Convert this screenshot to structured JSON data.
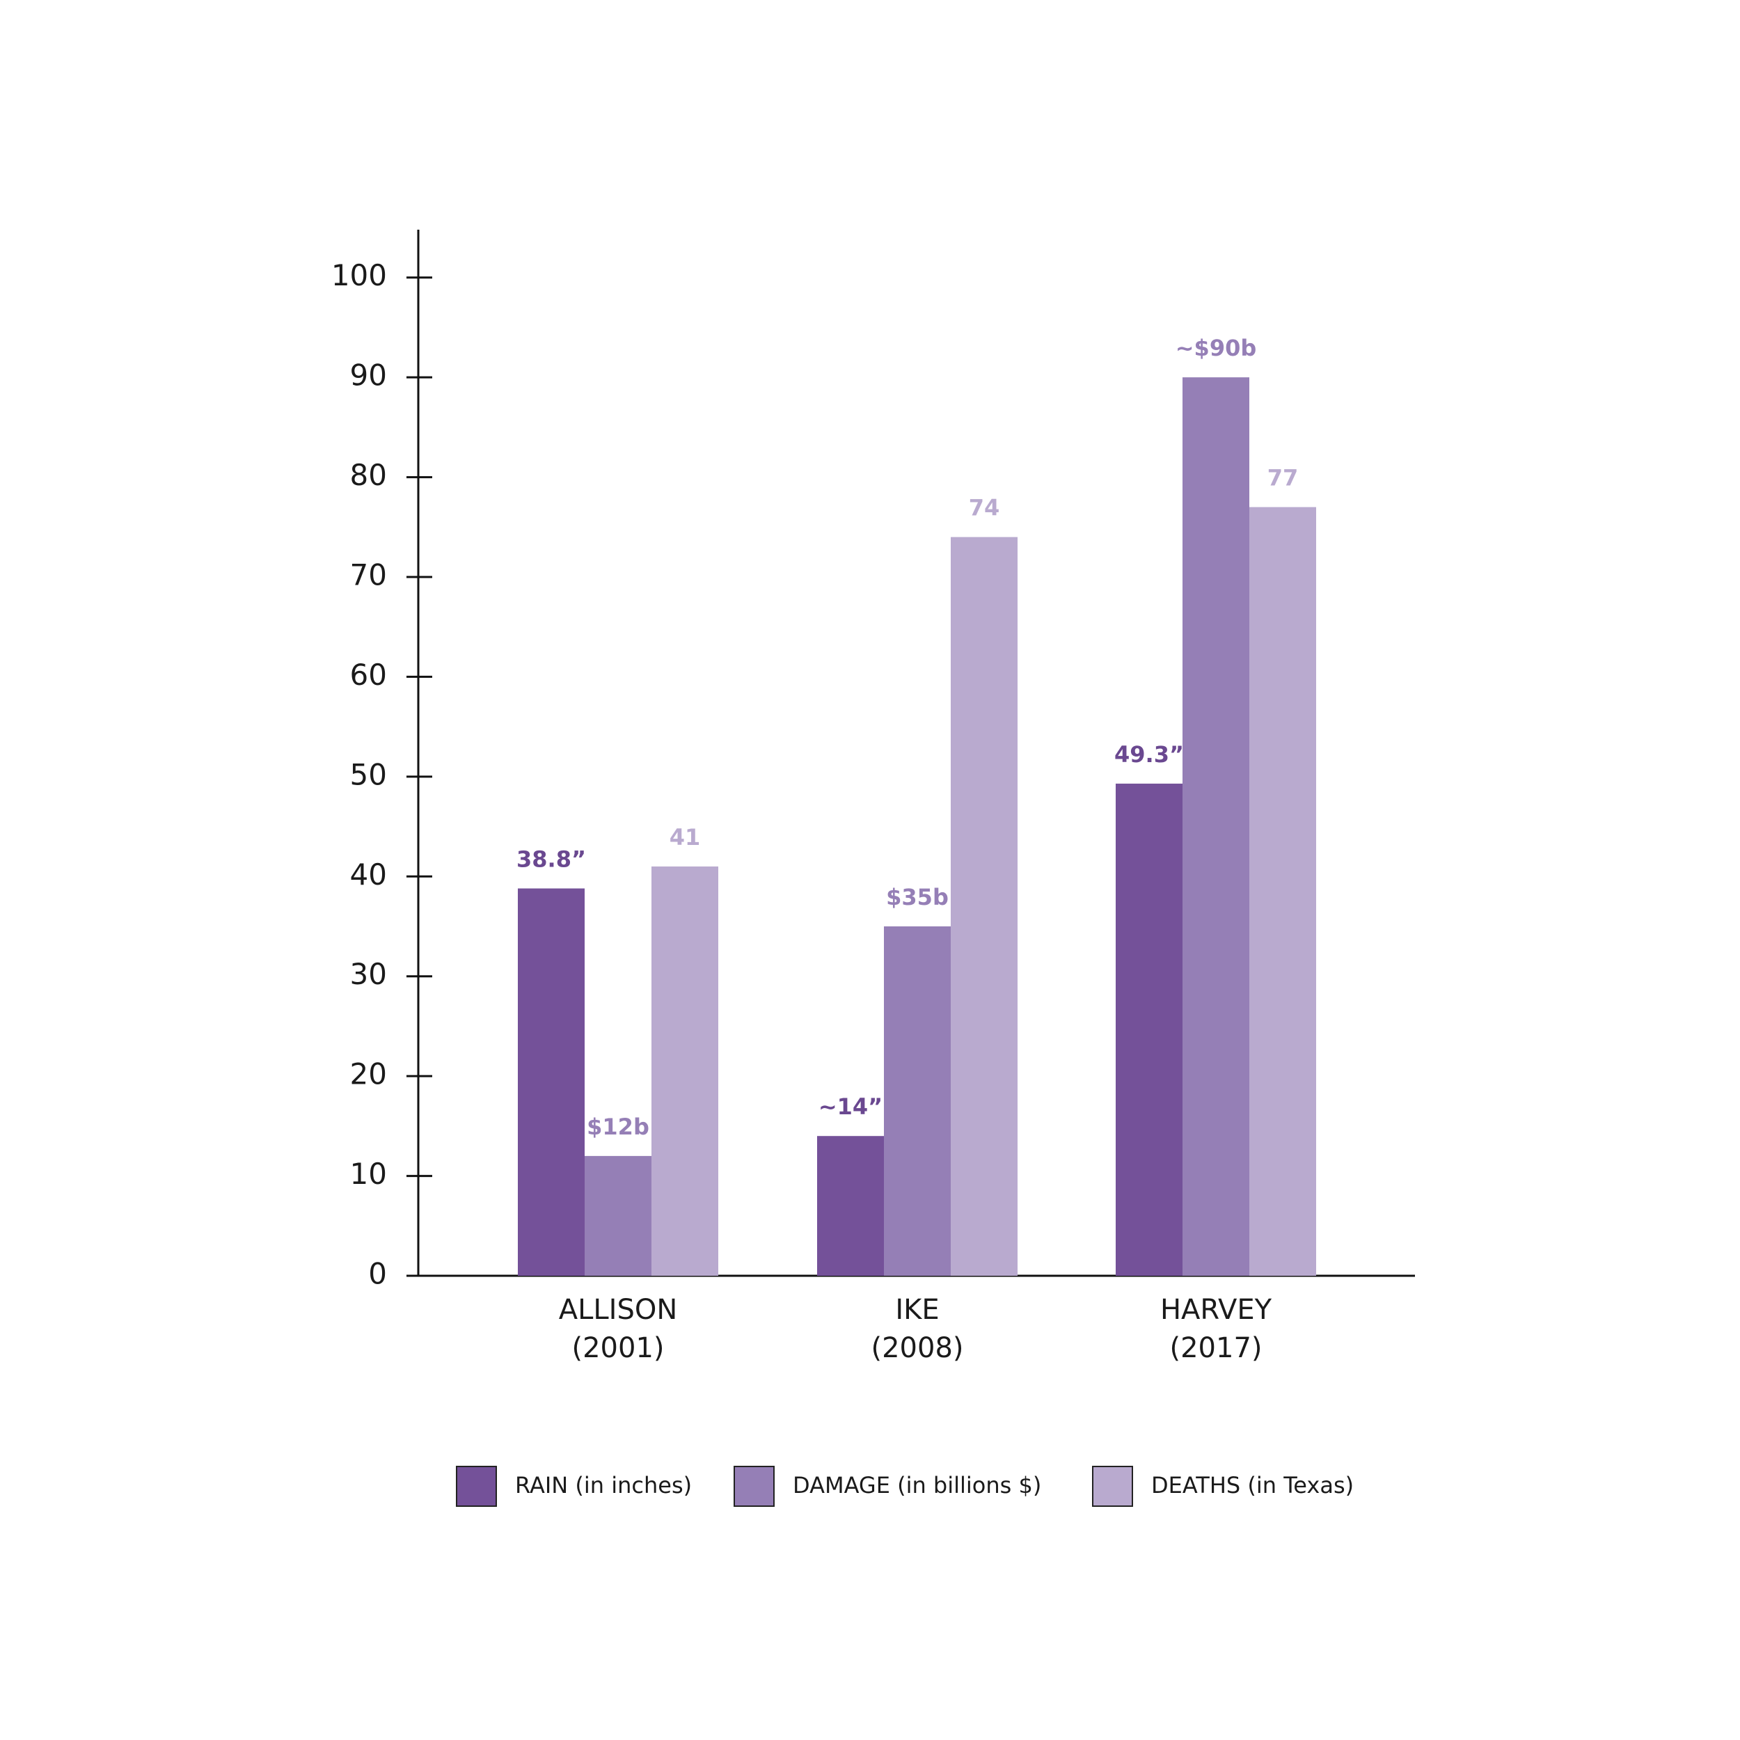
{
  "chart_data": {
    "type": "bar",
    "categories": [
      [
        "ALLISON",
        "(2001)"
      ],
      [
        "IKE",
        "(2008)"
      ],
      [
        "HARVEY",
        "(2017)"
      ]
    ],
    "series": [
      {
        "name": "RAIN (in inches)",
        "color": "#745199",
        "values": [
          38.8,
          14,
          49.3
        ],
        "value_labels": [
          "38.8”",
          "~14”",
          "49.3”"
        ]
      },
      {
        "name": "DAMAGE (in billions $)",
        "color": "#957fb6",
        "values": [
          12,
          35,
          90
        ],
        "value_labels": [
          "$12b",
          "$35b",
          "~$90b"
        ]
      },
      {
        "name": "DEATHS (in Texas)",
        "color": "#b9aacf",
        "values": [
          41,
          74,
          77
        ]
      }
    ],
    "ylim": [
      0,
      105
    ],
    "yticks": [
      0,
      10,
      20,
      30,
      40,
      50,
      60,
      70,
      80,
      90,
      100
    ],
    "grid": false,
    "legend": "bottom"
  }
}
